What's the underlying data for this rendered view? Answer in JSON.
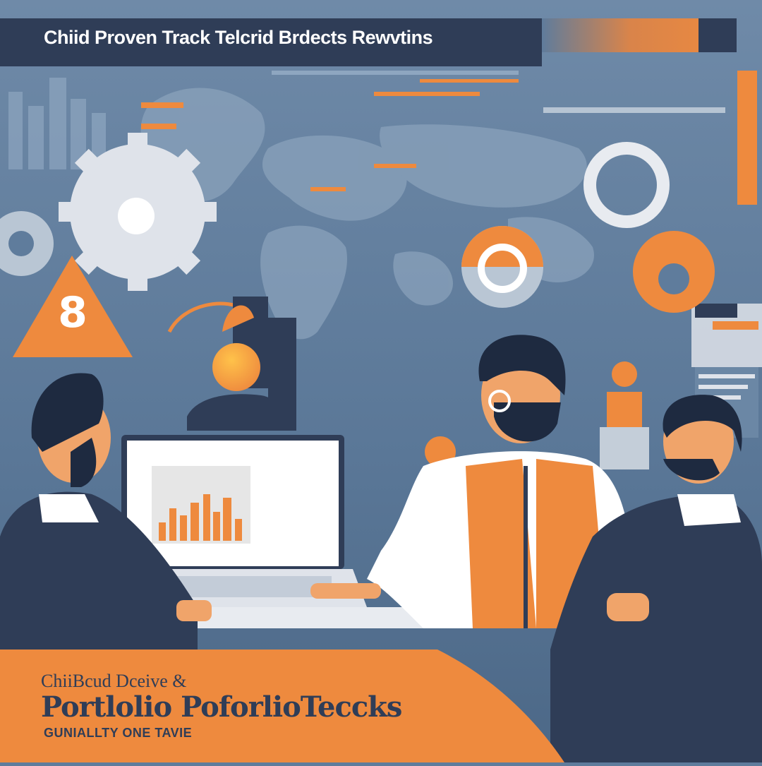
{
  "header": {
    "title": "Chiid Proven Track Telcrid Brdects Rewvtins"
  },
  "badge": {
    "number": "8"
  },
  "footer": {
    "subtitle": "ChiiBcud Dceive &",
    "title_main": "Portlolio",
    "title_accent": "PoforlioTeccks",
    "tagline": "GUNIALLTY ONE TAVIE"
  },
  "colors": {
    "accent": "#ee8a3e",
    "dark_navy": "#2f3d57",
    "slate_blue": "#5f7c9c",
    "light_gray": "#dfe3ea"
  }
}
